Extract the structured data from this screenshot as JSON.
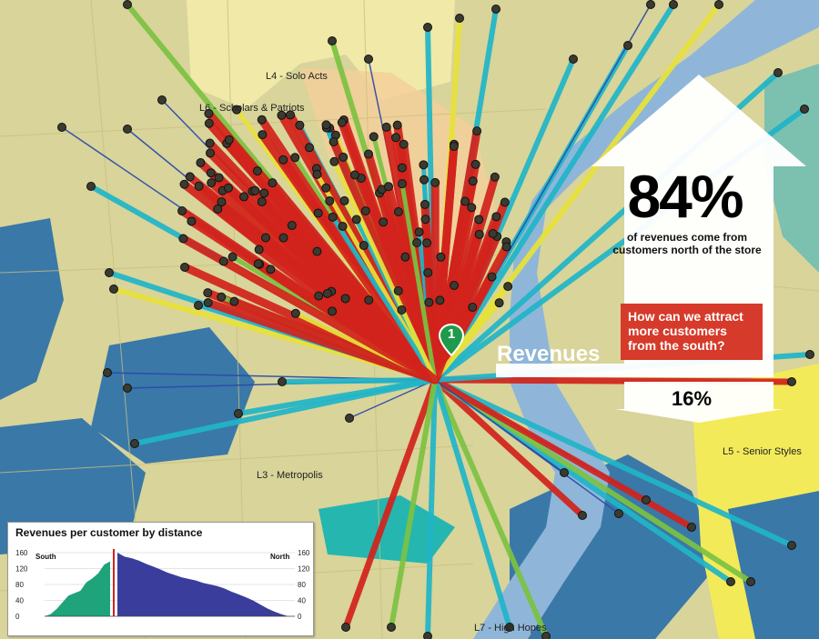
{
  "segments": {
    "l4": "L4 - Solo Acts",
    "l6": "L6 - Scholars & Patriots",
    "l3": "L3 - Metropolis",
    "l5": "L5 - Senior Styles",
    "l7": "L7 - High Hopes"
  },
  "store": {
    "number": "1",
    "color": "#1f9a4a"
  },
  "callout": {
    "north_percent": "84%",
    "north_caption": "of revenues come from customers north of the store",
    "question": "How can we attract more customers from the south?",
    "revenues_label": "Revenues",
    "south_percent": "16%"
  },
  "chart": {
    "title": "Revenues per customer by distance",
    "south_label": "South",
    "north_label": "North",
    "y_ticks": [
      "160",
      "120",
      "80",
      "40",
      "0"
    ]
  },
  "chart_data": {
    "type": "area",
    "title": "Revenues per customer by distance",
    "ylim": [
      0,
      160
    ],
    "series": [
      {
        "name": "South",
        "color": "#1fa37a",
        "values": [
          0,
          5,
          18,
          35,
          52,
          58,
          64,
          85,
          95,
          108,
          130,
          138
        ]
      },
      {
        "name": "North",
        "color": "#3a3d9c",
        "values": [
          160,
          150,
          146,
          140,
          132,
          125,
          118,
          110,
          104,
          98,
          94,
          90,
          84,
          80,
          76,
          70,
          62,
          55,
          48,
          40,
          30,
          20,
          12,
          5,
          0
        ]
      }
    ]
  },
  "colors": {
    "map_base": "#d8d49a",
    "water": "#8fb6d8",
    "segment_blue": "#3a78a8",
    "segment_yellow": "#f3ea5a",
    "red_line": "#d2231c",
    "cyan_line": "#20b5c8",
    "green_line": "#7cc242",
    "yellow_line": "#e8e23a",
    "navy_line": "#2a4aa8"
  }
}
